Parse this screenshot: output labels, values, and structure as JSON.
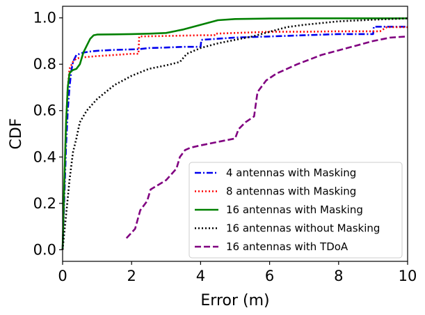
{
  "chart_data": {
    "type": "line",
    "title": "",
    "xlabel": "Error (m)",
    "ylabel": "CDF",
    "xlim": [
      0,
      10
    ],
    "ylim": [
      -0.05,
      1.05
    ],
    "xticks": [
      "0",
      "2",
      "4",
      "6",
      "8",
      "10"
    ],
    "yticks": [
      "0.0",
      "0.2",
      "0.4",
      "0.6",
      "0.8",
      "1.0"
    ],
    "grid": false,
    "legend_position": "lower-right",
    "series": [
      {
        "name": "4 antennas with Masking",
        "color": "#0000ee",
        "dash": "dashdot",
        "x": [
          0.0,
          0.1,
          0.15,
          0.2,
          0.25,
          0.3,
          0.4,
          0.6,
          0.8,
          1.0,
          1.5,
          2.2,
          2.5,
          3.0,
          3.5,
          4.0,
          4.02,
          4.5,
          5.0,
          6.0,
          7.0,
          8.0,
          9.0,
          9.02,
          10.0
        ],
        "y": [
          0.0,
          0.45,
          0.6,
          0.7,
          0.77,
          0.81,
          0.84,
          0.85,
          0.855,
          0.858,
          0.862,
          0.865,
          0.87,
          0.872,
          0.875,
          0.875,
          0.905,
          0.91,
          0.915,
          0.92,
          0.925,
          0.93,
          0.93,
          0.962,
          0.962
        ]
      },
      {
        "name": "8 antennas with Masking",
        "color": "#ff0000",
        "dash": "dotted",
        "x": [
          0.0,
          0.1,
          0.15,
          0.2,
          0.3,
          0.4,
          0.6,
          1.0,
          1.5,
          2.0,
          2.2,
          2.22,
          3.0,
          4.0,
          4.4,
          4.42,
          5.0,
          6.0,
          7.0,
          8.0,
          9.0,
          9.2,
          9.4,
          10.0
        ],
        "y": [
          0.0,
          0.55,
          0.7,
          0.78,
          0.81,
          0.825,
          0.83,
          0.835,
          0.84,
          0.845,
          0.845,
          0.92,
          0.922,
          0.925,
          0.925,
          0.932,
          0.935,
          0.94,
          0.94,
          0.942,
          0.942,
          0.942,
          0.96,
          0.96
        ]
      },
      {
        "name": "16 antennas with Masking",
        "color": "#008000",
        "dash": "solid",
        "x": [
          0.0,
          0.05,
          0.1,
          0.15,
          0.2,
          0.25,
          0.3,
          0.4,
          0.5,
          0.6,
          0.7,
          0.8,
          0.9,
          1.0,
          1.5,
          2.0,
          2.5,
          3.0,
          3.5,
          4.0,
          4.5,
          5.0,
          6.0,
          7.0,
          8.0,
          9.0,
          10.0
        ],
        "y": [
          0.0,
          0.3,
          0.55,
          0.7,
          0.76,
          0.77,
          0.775,
          0.78,
          0.8,
          0.85,
          0.88,
          0.91,
          0.925,
          0.928,
          0.929,
          0.93,
          0.932,
          0.935,
          0.95,
          0.97,
          0.99,
          0.995,
          0.997,
          0.998,
          0.998,
          0.998,
          0.998
        ]
      },
      {
        "name": "16 antennas without Masking",
        "color": "#000000",
        "dash": "dotted",
        "x": [
          0.0,
          0.1,
          0.2,
          0.3,
          0.4,
          0.5,
          0.7,
          1.0,
          1.5,
          2.0,
          2.5,
          3.0,
          3.4,
          3.6,
          4.0,
          4.5,
          5.0,
          5.5,
          6.0,
          6.5,
          7.0,
          8.0,
          9.0,
          9.5,
          10.0
        ],
        "y": [
          0.0,
          0.15,
          0.3,
          0.42,
          0.48,
          0.55,
          0.6,
          0.65,
          0.71,
          0.75,
          0.78,
          0.795,
          0.81,
          0.845,
          0.87,
          0.89,
          0.905,
          0.92,
          0.94,
          0.96,
          0.97,
          0.985,
          0.992,
          0.995,
          0.998
        ]
      },
      {
        "name": "16 antennas with TDoA",
        "color": "#800080",
        "dash": "dashed",
        "x": [
          1.85,
          2.1,
          2.25,
          2.45,
          2.55,
          3.0,
          3.3,
          3.4,
          3.55,
          3.7,
          4.0,
          4.5,
          5.0,
          5.1,
          5.3,
          5.55,
          5.65,
          5.9,
          6.2,
          6.8,
          7.5,
          8.0,
          8.5,
          9.0,
          9.5,
          10.0
        ],
        "y": [
          0.05,
          0.09,
          0.17,
          0.21,
          0.26,
          0.3,
          0.35,
          0.4,
          0.43,
          0.44,
          0.45,
          0.465,
          0.48,
          0.52,
          0.55,
          0.575,
          0.68,
          0.73,
          0.76,
          0.8,
          0.84,
          0.86,
          0.88,
          0.9,
          0.915,
          0.92
        ]
      }
    ]
  }
}
